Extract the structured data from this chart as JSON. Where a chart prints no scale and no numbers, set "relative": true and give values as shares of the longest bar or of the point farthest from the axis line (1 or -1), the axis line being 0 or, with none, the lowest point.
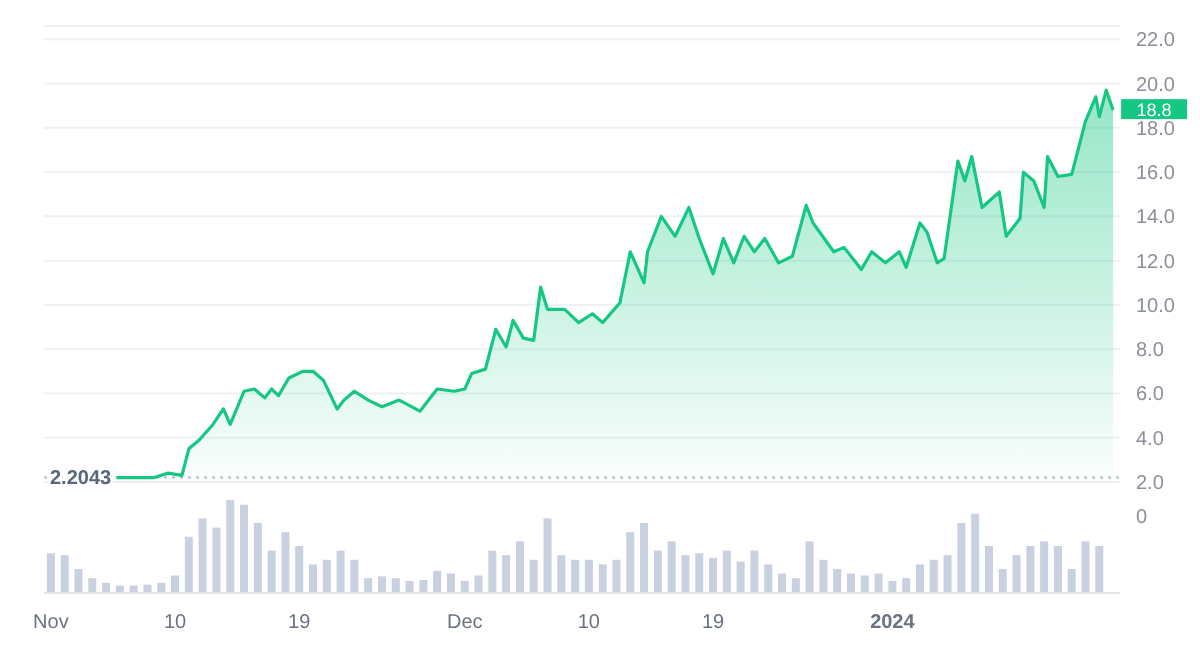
{
  "chart_data": [
    {
      "type": "area",
      "x": [
        "2023-11-05T18:00",
        "2023-11-08T12:00",
        "2023-11-09T12:00",
        "2023-11-10T12:00",
        "2023-11-11T00:00",
        "2023-11-11T18:00",
        "2023-11-12T18:00",
        "2023-11-13T12:00",
        "2023-11-14T00:00",
        "2023-11-15T00:00",
        "2023-11-15T18:00",
        "2023-11-16T12:00",
        "2023-11-17T00:00",
        "2023-11-17T12:00",
        "2023-11-18T06:00",
        "2023-11-19T06:00",
        "2023-11-20T00:00",
        "2023-11-20T18:00",
        "2023-11-21T18:00",
        "2023-11-22T06:00",
        "2023-11-23T00:00",
        "2023-11-24T00:00",
        "2023-11-25T00:00",
        "2023-11-26T06:00",
        "2023-11-27T18:00",
        "2023-11-29T00:00",
        "2023-11-30T06:00",
        "2023-12-01T00:00",
        "2023-12-01T12:00",
        "2023-12-02T12:00",
        "2023-12-03T06:00",
        "2023-12-04T00:00",
        "2023-12-04T12:00",
        "2023-12-05T06:00",
        "2023-12-06T00:00",
        "2023-12-06T12:00",
        "2023-12-07T00:00",
        "2023-12-08T06:00",
        "2023-12-09T06:00",
        "2023-12-10T06:00",
        "2023-12-11T00:00",
        "2023-12-12T06:00",
        "2023-12-13T00:00",
        "2023-12-14T00:00",
        "2023-12-14T06:00",
        "2023-12-15T06:00",
        "2023-12-16T06:00",
        "2023-12-17T06:00",
        "2023-12-18T00:00",
        "2023-12-19T00:00",
        "2023-12-19T18:00",
        "2023-12-20T12:00",
        "2023-12-21T06:00",
        "2023-12-22T00:00",
        "2023-12-22T18:00",
        "2023-12-23T18:00",
        "2023-12-24T18:00",
        "2023-12-25T18:00",
        "2023-12-26T06:00",
        "2023-12-27T18:00",
        "2023-12-28T12:00",
        "2023-12-29T18:00",
        "2023-12-30T12:00",
        "2023-12-31T12:00",
        "2024-01-01T12:00",
        "2024-01-02T00:00",
        "2024-01-03T00:00",
        "2024-01-03T12:00",
        "2024-01-04T06:00",
        "2024-01-04T18:00",
        "2024-01-05T18:00",
        "2024-01-06T06:00",
        "2024-01-06T18:00",
        "2024-01-07T12:00",
        "2024-01-08T18:00",
        "2024-01-09T06:00",
        "2024-01-10T06:00",
        "2024-01-10T12:00",
        "2024-01-11T06:00",
        "2024-01-12T00:00",
        "2024-01-12T06:00",
        "2024-01-13T00:00",
        "2024-01-14T00:00",
        "2024-01-15T00:00",
        "2024-01-15T18:00",
        "2024-01-16T00:00",
        "2024-01-16T12:00",
        "2024-01-17T00:00"
      ],
      "series": [
        {
          "color": "#16c784",
          "values": [
            2.2,
            2.2,
            2.4,
            2.3,
            3.5,
            3.9,
            4.6,
            5.3,
            4.6,
            6.1,
            6.2,
            5.8,
            6.2,
            5.9,
            6.7,
            7.0,
            7.0,
            6.6,
            5.3,
            5.7,
            6.1,
            5.7,
            5.4,
            5.7,
            5.2,
            6.2,
            6.1,
            6.2,
            6.9,
            7.1,
            8.9,
            8.1,
            9.3,
            8.5,
            8.4,
            10.8,
            9.8,
            9.8,
            9.2,
            9.6,
            9.2,
            10.1,
            12.4,
            11.0,
            12.4,
            14.0,
            13.1,
            14.4,
            13.0,
            11.4,
            13.0,
            11.9,
            13.1,
            12.4,
            13.0,
            11.9,
            12.2,
            14.5,
            13.7,
            12.4,
            12.6,
            11.6,
            12.4,
            11.9,
            12.4,
            11.7,
            13.7,
            13.3,
            11.9,
            12.1,
            16.5,
            15.6,
            16.7,
            14.4,
            15.1,
            13.1,
            13.9,
            16.0,
            15.6,
            14.4,
            16.7,
            15.8,
            15.9,
            18.3,
            19.4,
            18.5,
            19.7,
            18.8
          ]
        }
      ],
      "xlim": [
        "2023-10-31T12:00",
        "2024-01-17T12:00"
      ],
      "ylim": [
        2,
        22.6
      ],
      "yticks": [
        {
          "value": 2,
          "label": "2.0"
        },
        {
          "value": 4,
          "label": "4.0"
        },
        {
          "value": 6,
          "label": "6.0"
        },
        {
          "value": 8,
          "label": "8.0"
        },
        {
          "value": 10,
          "label": "10.0"
        },
        {
          "value": 12,
          "label": "12.0"
        },
        {
          "value": 14,
          "label": "14.0"
        },
        {
          "value": 16,
          "label": "16.0"
        },
        {
          "value": 18,
          "label": "18.0"
        },
        {
          "value": 20,
          "label": "20.0"
        },
        {
          "value": 22,
          "label": "22.0"
        }
      ],
      "grid": "y",
      "tick_labels": "y",
      "ref_lines": [
        {
          "axis": "y",
          "value": 2.2043,
          "label": "2.2043",
          "line_style": "dotted"
        }
      ],
      "annotations": [
        {
          "text": "18.8",
          "x": "2024-01-17T00:00",
          "y": 18.8
        }
      ]
    },
    {
      "type": "bar",
      "relative": true,
      "tick_labels": "x",
      "x": [
        "2023-11-01",
        "2023-11-02",
        "2023-11-03",
        "2023-11-04",
        "2023-11-05",
        "2023-11-06",
        "2023-11-07",
        "2023-11-08",
        "2023-11-09",
        "2023-11-10",
        "2023-11-11",
        "2023-11-12",
        "2023-11-13",
        "2023-11-14",
        "2023-11-15",
        "2023-11-16",
        "2023-11-17",
        "2023-11-18",
        "2023-11-19",
        "2023-11-20",
        "2023-11-21",
        "2023-11-22",
        "2023-11-23",
        "2023-11-24",
        "2023-11-25",
        "2023-11-26",
        "2023-11-27",
        "2023-11-28",
        "2023-11-29",
        "2023-11-30",
        "2023-12-01",
        "2023-12-02",
        "2023-12-03",
        "2023-12-04",
        "2023-12-05",
        "2023-12-06",
        "2023-12-07",
        "2023-12-08",
        "2023-12-09",
        "2023-12-10",
        "2023-12-11",
        "2023-12-12",
        "2023-12-13",
        "2023-12-14",
        "2023-12-15",
        "2023-12-16",
        "2023-12-17",
        "2023-12-18",
        "2023-12-19",
        "2023-12-20",
        "2023-12-21",
        "2023-12-22",
        "2023-12-23",
        "2023-12-24",
        "2023-12-25",
        "2023-12-26",
        "2023-12-27",
        "2023-12-28",
        "2023-12-29",
        "2023-12-30",
        "2023-12-31",
        "2024-01-01",
        "2024-01-02",
        "2024-01-03",
        "2024-01-04",
        "2024-01-05",
        "2024-01-06",
        "2024-01-07",
        "2024-01-08",
        "2024-01-09",
        "2024-01-10",
        "2024-01-11",
        "2024-01-12",
        "2024-01-13",
        "2024-01-14",
        "2024-01-15",
        "2024-01-16"
      ],
      "values": [
        0.42,
        0.4,
        0.25,
        0.15,
        0.1,
        0.07,
        0.07,
        0.08,
        0.1,
        0.18,
        0.6,
        0.8,
        0.7,
        1.0,
        0.95,
        0.75,
        0.45,
        0.65,
        0.5,
        0.3,
        0.35,
        0.45,
        0.35,
        0.15,
        0.17,
        0.15,
        0.12,
        0.13,
        0.23,
        0.2,
        0.12,
        0.18,
        0.45,
        0.4,
        0.55,
        0.35,
        0.8,
        0.4,
        0.35,
        0.35,
        0.3,
        0.35,
        0.65,
        0.75,
        0.45,
        0.55,
        0.4,
        0.42,
        0.37,
        0.45,
        0.33,
        0.45,
        0.3,
        0.2,
        0.15,
        0.55,
        0.35,
        0.25,
        0.2,
        0.18,
        0.2,
        0.12,
        0.15,
        0.3,
        0.35,
        0.4,
        0.75,
        0.85,
        0.5,
        0.25,
        0.4,
        0.5,
        0.55,
        0.5,
        0.25,
        0.55,
        0.5
      ],
      "color": "#c9d0e0",
      "xlim": [
        "2023-10-31T12:00",
        "2024-01-17T12:00"
      ],
      "xticks": [
        {
          "value": "2023-11-01",
          "label": "Nov"
        },
        {
          "value": "2023-11-10",
          "label": "10"
        },
        {
          "value": "2023-11-19",
          "label": "19"
        },
        {
          "value": "2023-12-01",
          "label": "Dec"
        },
        {
          "value": "2023-12-10",
          "label": "10"
        },
        {
          "value": "2023-12-19",
          "label": "19"
        },
        {
          "value": "2024-01-01",
          "label": "2024"
        }
      ],
      "annotations": [
        "0"
      ]
    }
  ]
}
